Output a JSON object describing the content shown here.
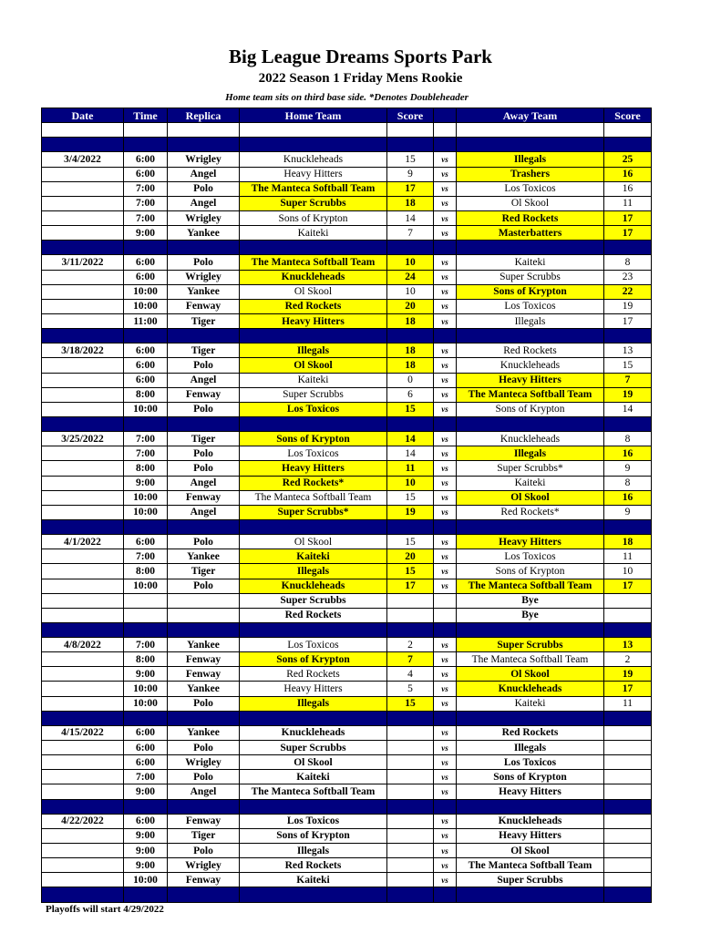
{
  "title": "Big League Dreams Sports Park",
  "subtitle": "2022 Season 1 Friday Mens Rookie",
  "note": "Home team sits on third base side.  *Denotes Doubleheader",
  "footer": "Playoffs will start 4/29/2022",
  "colors": {
    "header": "#00007f",
    "winner": "#ffff00"
  },
  "columns": [
    "Date",
    "Time",
    "Replica",
    "Home Team",
    "Score",
    "",
    "Away Team",
    "Score"
  ],
  "sections": [
    {
      "date": "3/4/2022",
      "games": [
        {
          "time": "6:00",
          "field": "Wrigley",
          "home": "Knuckleheads",
          "home_score": "15",
          "vs": "vs",
          "away": "Illegals",
          "away_score": "25",
          "winner": "a"
        },
        {
          "time": "6:00",
          "field": "Angel",
          "home": "Heavy Hitters",
          "home_score": "9",
          "vs": "vs",
          "away": "Trashers",
          "away_score": "16",
          "winner": "a"
        },
        {
          "time": "7:00",
          "field": "Polo",
          "home": "The Manteca Softball Team",
          "home_score": "17",
          "vs": "vs",
          "away": "Los Toxicos",
          "away_score": "16",
          "winner": "h"
        },
        {
          "time": "7:00",
          "field": "Angel",
          "home": "Super Scrubbs",
          "home_score": "18",
          "vs": "vs",
          "away": "Ol Skool",
          "away_score": "11",
          "winner": "h"
        },
        {
          "time": "7:00",
          "field": "Wrigley",
          "home": "Sons of Krypton",
          "home_score": "14",
          "vs": "vs",
          "away": "Red Rockets",
          "away_score": "17",
          "winner": "a"
        },
        {
          "time": "9:00",
          "field": "Yankee",
          "home": "Kaiteki",
          "home_score": "7",
          "vs": "vs",
          "away": "Masterbatters",
          "away_score": "17",
          "winner": "a"
        }
      ]
    },
    {
      "date": "3/11/2022",
      "games": [
        {
          "time": "6:00",
          "field": "Polo",
          "home": "The Manteca Softball Team",
          "home_score": "10",
          "vs": "vs",
          "away": "Kaiteki",
          "away_score": "8",
          "winner": "h"
        },
        {
          "time": "6:00",
          "field": "Wrigley",
          "home": "Knuckleheads",
          "home_score": "24",
          "vs": "vs",
          "away": "Super Scrubbs",
          "away_score": "23",
          "winner": "h"
        },
        {
          "time": "10:00",
          "field": "Yankee",
          "home": "Ol Skool",
          "home_score": "10",
          "vs": "vs",
          "away": "Sons of Krypton",
          "away_score": "22",
          "winner": "a"
        },
        {
          "time": "10:00",
          "field": "Fenway",
          "home": "Red Rockets",
          "home_score": "20",
          "vs": "vs",
          "away": "Los Toxicos",
          "away_score": "19",
          "winner": "h"
        },
        {
          "time": "11:00",
          "field": "Tiger",
          "home": "Heavy Hitters",
          "home_score": "18",
          "vs": "vs",
          "away": "Illegals",
          "away_score": "17",
          "winner": "h"
        }
      ]
    },
    {
      "date": "3/18/2022",
      "games": [
        {
          "time": "6:00",
          "field": "Tiger",
          "home": "Illegals",
          "home_score": "18",
          "vs": "vs",
          "away": "Red Rockets",
          "away_score": "13",
          "winner": "h"
        },
        {
          "time": "6:00",
          "field": "Polo",
          "home": "Ol Skool",
          "home_score": "18",
          "vs": "vs",
          "away": "Knuckleheads",
          "away_score": "15",
          "winner": "h"
        },
        {
          "time": "6:00",
          "field": "Angel",
          "home": "Kaiteki",
          "home_score": "0",
          "vs": "vs",
          "away": "Heavy Hitters",
          "away_score": "7",
          "winner": "a"
        },
        {
          "time": "8:00",
          "field": "Fenway",
          "home": "Super Scrubbs",
          "home_score": "6",
          "vs": "vs",
          "away": "The Manteca Softball Team",
          "away_score": "19",
          "winner": "a"
        },
        {
          "time": "10:00",
          "field": "Polo",
          "home": "Los Toxicos",
          "home_score": "15",
          "vs": "vs",
          "away": "Sons of Krypton",
          "away_score": "14",
          "winner": "h"
        }
      ]
    },
    {
      "date": "3/25/2022",
      "games": [
        {
          "time": "7:00",
          "field": "Tiger",
          "home": "Sons of Krypton",
          "home_score": "14",
          "vs": "vs",
          "away": "Knuckleheads",
          "away_score": "8",
          "winner": "h"
        },
        {
          "time": "7:00",
          "field": "Polo",
          "home": "Los Toxicos",
          "home_score": "14",
          "vs": "vs",
          "away": "Illegals",
          "away_score": "16",
          "winner": "a"
        },
        {
          "time": "8:00",
          "field": "Polo",
          "home": "Heavy Hitters",
          "home_score": "11",
          "vs": "vs",
          "away": "Super Scrubbs*",
          "away_score": "9",
          "winner": "h"
        },
        {
          "time": "9:00",
          "field": "Angel",
          "home": "Red Rockets*",
          "home_score": "10",
          "vs": "vs",
          "away": "Kaiteki",
          "away_score": "8",
          "winner": "h"
        },
        {
          "time": "10:00",
          "field": "Fenway",
          "home": "The Manteca Softball Team",
          "home_score": "15",
          "vs": "vs",
          "away": "Ol Skool",
          "away_score": "16",
          "winner": "a"
        },
        {
          "time": "10:00",
          "field": "Angel",
          "home": "Super Scrubbs*",
          "home_score": "19",
          "vs": "vs",
          "away": "Red Rockets*",
          "away_score": "9",
          "winner": "h"
        }
      ]
    },
    {
      "date": "4/1/2022",
      "games": [
        {
          "time": "6:00",
          "field": "Polo",
          "home": "Ol Skool",
          "home_score": "15",
          "vs": "vs",
          "away": "Heavy Hitters",
          "away_score": "18",
          "winner": "a"
        },
        {
          "time": "7:00",
          "field": "Yankee",
          "home": "Kaiteki",
          "home_score": "20",
          "vs": "vs",
          "away": "Los Toxicos",
          "away_score": "11",
          "winner": "h"
        },
        {
          "time": "8:00",
          "field": "Tiger",
          "home": "Illegals",
          "home_score": "15",
          "vs": "vs",
          "away": "Sons of Krypton",
          "away_score": "10",
          "winner": "h"
        },
        {
          "time": "10:00",
          "field": "Polo",
          "home": "Knuckleheads",
          "home_score": "17",
          "vs": "vs",
          "away": "The Manteca Softball Team",
          "away_score": "17",
          "winner": "both"
        },
        {
          "time": "",
          "field": "",
          "home": "Super Scrubbs",
          "home_score": "",
          "vs": "",
          "away": "Bye",
          "away_score": "",
          "winner": ""
        },
        {
          "time": "",
          "field": "",
          "home": "Red Rockets",
          "home_score": "",
          "vs": "",
          "away": "Bye",
          "away_score": "",
          "winner": ""
        }
      ]
    },
    {
      "date": "4/8/2022",
      "games": [
        {
          "time": "7:00",
          "field": "Yankee",
          "home": "Los Toxicos",
          "home_score": "2",
          "vs": "vs",
          "away": "Super Scrubbs",
          "away_score": "13",
          "winner": "a"
        },
        {
          "time": "8:00",
          "field": "Fenway",
          "home": "Sons of Krypton",
          "home_score": "7",
          "vs": "vs",
          "away": "The Manteca Softball Team",
          "away_score": "2",
          "winner": "h"
        },
        {
          "time": "9:00",
          "field": "Fenway",
          "home": "Red Rockets",
          "home_score": "4",
          "vs": "vs",
          "away": "Ol Skool",
          "away_score": "19",
          "winner": "a"
        },
        {
          "time": "10:00",
          "field": "Yankee",
          "home": "Heavy Hitters",
          "home_score": "5",
          "vs": "vs",
          "away": "Knuckleheads",
          "away_score": "17",
          "winner": "a"
        },
        {
          "time": "10:00",
          "field": "Polo",
          "home": "Illegals",
          "home_score": "15",
          "vs": "vs",
          "away": "Kaiteki",
          "away_score": "11",
          "winner": "h"
        }
      ]
    },
    {
      "date": "4/15/2022",
      "games": [
        {
          "time": "6:00",
          "field": "Yankee",
          "home": "Knuckleheads",
          "home_score": "",
          "vs": "vs",
          "away": "Red Rockets",
          "away_score": "",
          "winner": ""
        },
        {
          "time": "6:00",
          "field": "Polo",
          "home": "Super Scrubbs",
          "home_score": "",
          "vs": "vs",
          "away": "Illegals",
          "away_score": "",
          "winner": ""
        },
        {
          "time": "6:00",
          "field": "Wrigley",
          "home": "Ol Skool",
          "home_score": "",
          "vs": "vs",
          "away": "Los Toxicos",
          "away_score": "",
          "winner": ""
        },
        {
          "time": "7:00",
          "field": "Polo",
          "home": "Kaiteki",
          "home_score": "",
          "vs": "vs",
          "away": "Sons of Krypton",
          "away_score": "",
          "winner": ""
        },
        {
          "time": "9:00",
          "field": "Angel",
          "home": "The Manteca Softball Team",
          "home_score": "",
          "vs": "vs",
          "away": "Heavy Hitters",
          "away_score": "",
          "winner": ""
        }
      ]
    },
    {
      "date": "4/22/2022",
      "games": [
        {
          "time": "6:00",
          "field": "Fenway",
          "home": "Los Toxicos",
          "home_score": "",
          "vs": "vs",
          "away": "Knuckleheads",
          "away_score": "",
          "winner": ""
        },
        {
          "time": "9:00",
          "field": "Tiger",
          "home": "Sons of Krypton",
          "home_score": "",
          "vs": "vs",
          "away": "Heavy Hitters",
          "away_score": "",
          "winner": ""
        },
        {
          "time": "9:00",
          "field": "Polo",
          "home": "Illegals",
          "home_score": "",
          "vs": "vs",
          "away": "Ol Skool",
          "away_score": "",
          "winner": ""
        },
        {
          "time": "9:00",
          "field": "Wrigley",
          "home": "Red Rockets",
          "home_score": "",
          "vs": "vs",
          "away": "The Manteca Softball Team",
          "away_score": "",
          "winner": ""
        },
        {
          "time": "10:00",
          "field": "Fenway",
          "home": "Kaiteki",
          "home_score": "",
          "vs": "vs",
          "away": "Super Scrubbs",
          "away_score": "",
          "winner": ""
        }
      ]
    }
  ]
}
